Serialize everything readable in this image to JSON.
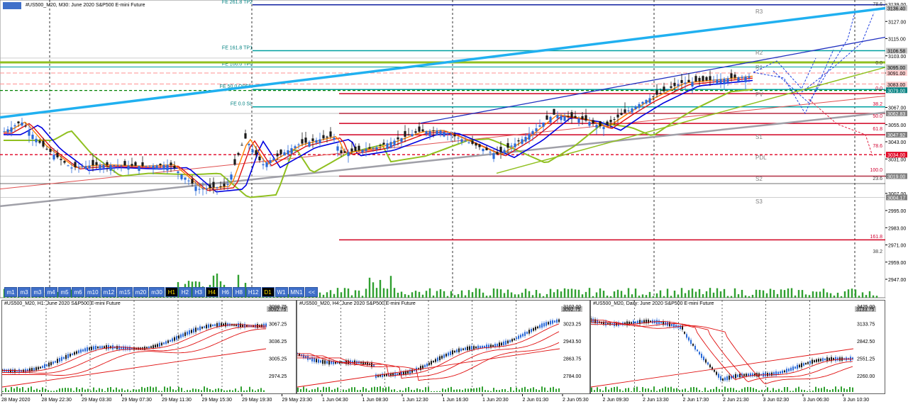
{
  "main_chart": {
    "title": "#US500_M20, M30:  June 2020 S&P500 E-mini Future",
    "price_labels": [
      "3139.00",
      "3127.00",
      "3115.00",
      "3103.00",
      "3091.00",
      "3079.00",
      "3067.00",
      "3055.00",
      "3043.00",
      "3031.00",
      "3019.00",
      "3007.00",
      "2995.00",
      "2983.00",
      "2971.00",
      "2959.00",
      "2947.00"
    ],
    "highlighted_prices": [
      {
        "label": "3136.40",
        "color": "#c0c0c0"
      },
      {
        "label": "3106.58",
        "color": "#c0c0c0"
      },
      {
        "label": "3095.00",
        "color": "#c0c0c0"
      },
      {
        "label": "3091.00",
        "color": "#ffd0d0"
      },
      {
        "label": "3083.00",
        "color": "#ffd0d0"
      },
      {
        "label": "3079.00",
        "color": "#008080"
      },
      {
        "label": "3062.83",
        "color": "#808080"
      },
      {
        "label": "3047.92",
        "color": "#808080"
      },
      {
        "label": "3034.00",
        "color": "#e00020"
      },
      {
        "label": "3019.00",
        "color": "#808080"
      },
      {
        "label": "3004.17",
        "color": "#808080"
      }
    ],
    "time_labels": [
      "28 May 2020",
      "28 May 22:30",
      "29 May 03:30",
      "29 May 07:30",
      "29 May 11:30",
      "29 May 15:30",
      "29 May 19:30",
      "29 May 23:30",
      "1 Jun 04:30",
      "1 Jun 08:30",
      "1 Jun 12:30",
      "1 Jun 16:30",
      "1 Jun 20:30",
      "2 Jun 01:30",
      "2 Jun 05:30",
      "2 Jun 09:30",
      "2 Jun 13:30",
      "2 Jun 17:30",
      "2 Jun 21:30",
      "3 Jun 02:30",
      "3 Jun 06:30",
      "3 Jun 10:30"
    ],
    "fib_labels": [
      "FE 261.8 TP2",
      "FE 161.8 TP1",
      "FE 100.0 TP0",
      "FE 50.0 OPEN",
      "FE 0.0 SL"
    ],
    "pivot_labels": [
      "R3",
      "R2",
      "R1",
      "PV",
      "S1",
      "PDL",
      "S2",
      "S3"
    ],
    "retracement_labels": [
      "78.6",
      "0.0",
      "0.0",
      "38.2",
      "50.0",
      "61.8",
      "78.6",
      "100.0",
      "23.6",
      "161.8",
      "38.2"
    ]
  },
  "timeframes": [
    "m1",
    "m3",
    "m3",
    "m4",
    "m5",
    "m6",
    "m10",
    "m12",
    "m15",
    "m20",
    "m30",
    "H1",
    "H2",
    "H3",
    "H4",
    "H6",
    "H8",
    "H12",
    "D1",
    "W1",
    "MN1",
    "<<"
  ],
  "active_timeframes": [
    "H1",
    "H4",
    "D1"
  ],
  "sub_charts": [
    {
      "title": "#US500_M20, H1:  June 2020 S&P500 E-mini Future",
      "prices": [
        "3098.75",
        "3067.25",
        "3036.25",
        "3005.25",
        "2974.25"
      ],
      "current": "3092.75"
    },
    {
      "title": "#US500_M20, H4:  June 2020 S&P500 E-mini Future",
      "prices": [
        "3102.00",
        "3023.25",
        "2943.50",
        "2863.75",
        "2784.00"
      ],
      "current": "3092.75"
    },
    {
      "title": "#US500_M20, Daily:  June 2020 S&P500 E-mini Future",
      "prices": [
        "3425.00",
        "3133.75",
        "2842.50",
        "2551.25",
        "2260.00"
      ],
      "current": "3133.75"
    }
  ],
  "colors": {
    "candle_up": "#2a6ad8",
    "candle_down": "#1a1a1a",
    "ema_red": "#e01010",
    "ema_orange": "#ff8000",
    "ema_blue": "#0000e0",
    "ema_green": "#90c020",
    "sma_gray": "#a0a0a8",
    "channel_cyan": "#20b0f0",
    "fib_teal": "#00a0a0",
    "sr_red": "#d00020",
    "volume": "#30a030"
  }
}
